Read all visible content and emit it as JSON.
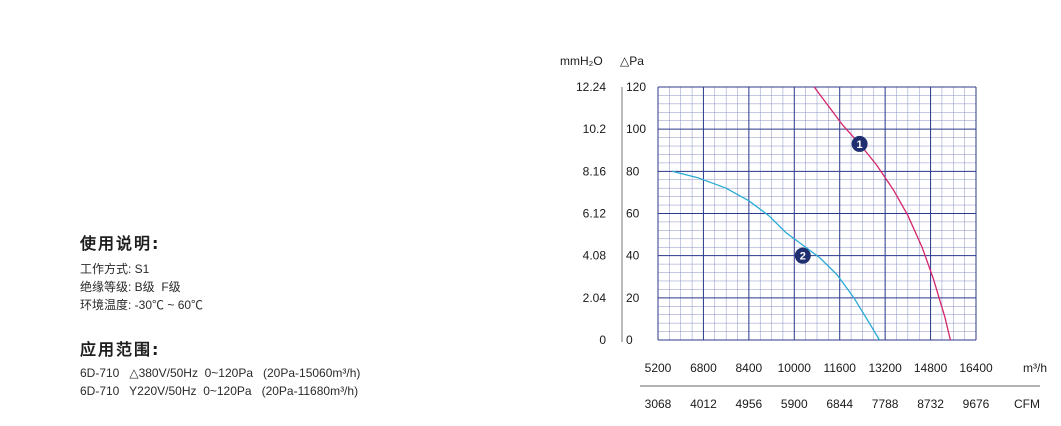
{
  "usage": {
    "title": "使用说明:",
    "lines": [
      "工作方式: S1",
      "绝缘等级: B级  F级",
      "环境温度: -30℃ ~ 60℃"
    ]
  },
  "scope": {
    "title": "应用范围:",
    "lines": [
      "6D-710   △380V/50Hz  0~120Pa   (20Pa-15060m³/h)",
      "6D-710   Y220V/50Hz  0~120Pa   (20Pa-11680m³/h)"
    ]
  },
  "chart_data": {
    "type": "line",
    "title": "",
    "y_left_unit": "mmH₂O",
    "y_right_unit": "△Pa",
    "y_mm_ticks": [
      "12.24",
      "10.2",
      "8.16",
      "6.12",
      "4.08",
      "2.04",
      "0"
    ],
    "y_pa_ticks": [
      "120",
      "100",
      "80",
      "60",
      "40",
      "20",
      "0"
    ],
    "x_unit": "m³/h",
    "x_ticks": [
      "5200",
      "6800",
      "8400",
      "10000",
      "11600",
      "13200",
      "14800",
      "16400"
    ],
    "x2_unit": "CFM",
    "x2_ticks": [
      "3068",
      "4012",
      "4956",
      "5900",
      "6844",
      "7788",
      "8732",
      "9676"
    ],
    "xlim": [
      5200,
      16400
    ],
    "ylim": [
      0,
      120
    ],
    "grid": true,
    "series": [
      {
        "name": "1",
        "color": "#d4246a",
        "x": [
          10700,
          11200,
          11700,
          12300,
          12900,
          13500,
          14000,
          14500,
          14900,
          15300,
          15500
        ],
        "y": [
          120,
          111,
          102,
          93,
          83,
          71,
          59,
          44,
          29,
          11,
          0
        ],
        "label_x": 12300,
        "label_y": 93
      },
      {
        "name": "2",
        "color": "#2aaad4",
        "x": [
          5700,
          6600,
          7600,
          8400,
          9100,
          9700,
          10300,
          10900,
          11500,
          12100,
          12600,
          13000
        ],
        "y": [
          80,
          77,
          72,
          66,
          59,
          51,
          45,
          39,
          31,
          20,
          9,
          0
        ],
        "label_x": 10300,
        "label_y": 40
      }
    ]
  }
}
